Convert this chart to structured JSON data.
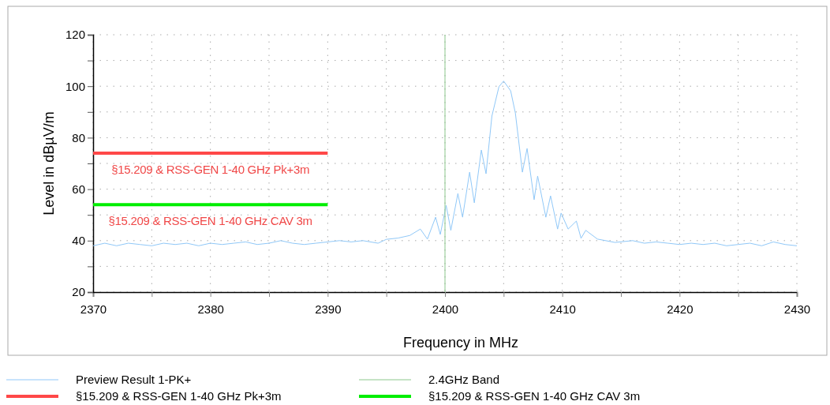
{
  "chart_data": {
    "type": "line",
    "xlabel": "Frequency in MHz",
    "ylabel": "Level in dBµV/m",
    "xlim": [
      2370,
      2430
    ],
    "ylim": [
      20,
      120
    ],
    "xticks": [
      2370,
      {
        "value": 2375,
        "label": null
      },
      2380,
      {
        "value": 2385,
        "label": null
      },
      2390,
      {
        "value": 2395,
        "label": null
      },
      2400,
      {
        "value": 2405,
        "label": null
      },
      2410,
      {
        "value": 2415,
        "label": null
      },
      2420,
      {
        "value": 2425,
        "label": null
      },
      2430
    ],
    "yticks": [
      20,
      {
        "value": 30,
        "label": null
      },
      40,
      {
        "value": 50,
        "label": null
      },
      60,
      {
        "value": 70,
        "label": null
      },
      80,
      {
        "value": 90,
        "label": null
      },
      100,
      {
        "value": 110,
        "label": null
      },
      120
    ],
    "grid": true,
    "legend": "bottom",
    "marker": "none",
    "line_style": "solid",
    "series": [
      {
        "name": "Preview Result 1-PK+",
        "color": "#90c8f8",
        "x": [
          2370,
          2371,
          2372,
          2373,
          2374,
          2375,
          2376,
          2377,
          2378,
          2379,
          2380,
          2381,
          2382,
          2383,
          2384,
          2385,
          2386,
          2387,
          2388,
          2389,
          2390,
          2391,
          2392,
          2393,
          2394.3,
          2395,
          2396,
          2397,
          2397.9,
          2398.5,
          2399.2,
          2399.6,
          2400.1,
          2400.5,
          2401.1,
          2401.5,
          2402.1,
          2402.5,
          2403.1,
          2403.5,
          2404,
          2404.6,
          2405,
          2405.6,
          2406,
          2406.4,
          2406.6,
          2407,
          2407.6,
          2407.9,
          2408.6,
          2409,
          2409.6,
          2409.9,
          2410.5,
          2411.2,
          2411.6,
          2412,
          2413,
          2414.5,
          2416,
          2417,
          2418,
          2419,
          2420,
          2421,
          2422,
          2423,
          2424,
          2425,
          2426,
          2427,
          2428,
          2429,
          2430
        ],
        "values": [
          38,
          39,
          38,
          39,
          38.5,
          38,
          39,
          38.5,
          39,
          38,
          39,
          38.5,
          39,
          39.5,
          38.5,
          39,
          40,
          39,
          38.5,
          39,
          39.5,
          40,
          39.5,
          40,
          39,
          40.5,
          41,
          42,
          44.5,
          40.6,
          49.1,
          42.4,
          53.7,
          44,
          58.3,
          49.1,
          66.6,
          54.7,
          75.2,
          66,
          88.4,
          99.8,
          102,
          98.2,
          89.6,
          74.3,
          66.6,
          75.8,
          55.9,
          65.1,
          49.1,
          57.4,
          44.5,
          50.7,
          44.5,
          47.6,
          40.9,
          44,
          40.6,
          39.3,
          40,
          39,
          39.5,
          39,
          38.5,
          39,
          38.5,
          39,
          38,
          38.5,
          39,
          38,
          39.5,
          38.5,
          38
        ]
      },
      {
        "name": "2.4GHz Band",
        "color": "#8cc88c",
        "x": [
          2400,
          2400
        ],
        "values": [
          20,
          120
        ]
      },
      {
        "name": "§15.209 & RSS-GEN 1-40 GHz Pk+3m",
        "color": "#ff4848",
        "x": [
          2370,
          2390
        ],
        "values": [
          74,
          74
        ]
      },
      {
        "name": "§15.209 & RSS-GEN 1-40 GHz CAV 3m",
        "color": "#00ee00",
        "x": [
          2370,
          2390
        ],
        "values": [
          54,
          54
        ]
      }
    ],
    "annotations": [
      "§15.209 & RSS-GEN 1-40 GHz Pk+3m",
      "§15.209 & RSS-GEN 1-40 GHz CAV 3m"
    ]
  }
}
